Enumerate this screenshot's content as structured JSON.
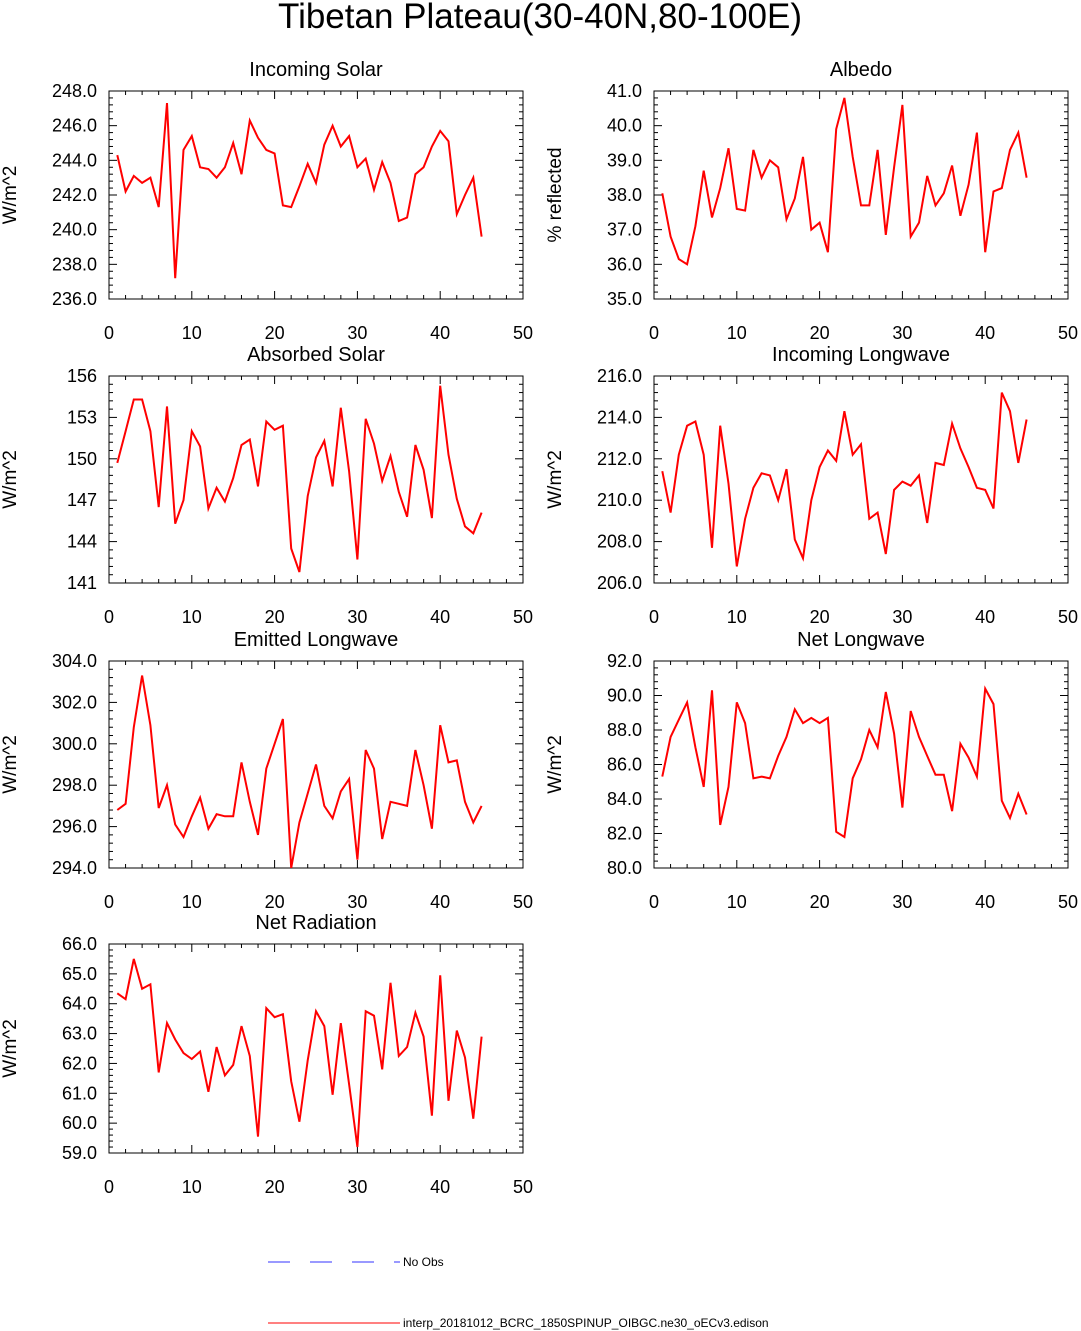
{
  "figure": {
    "title": "Tibetan Plateau(30-40N,80-100E)",
    "legend": {
      "obs_label": "No Obs",
      "obs_color": "#3333ff",
      "model_label": "interp_20181012_BCRC_1850SPINUP_OIBGC.ne30_oECv3.edison",
      "model_color": "#ff0000"
    }
  },
  "chart_data": [
    {
      "type": "line",
      "title": "Incoming Solar",
      "ylabel": "W/m^2",
      "xlim": [
        0,
        50
      ],
      "ylim": [
        236,
        248
      ],
      "ytick_step": 2,
      "ytick_decimals": 1,
      "xticks": [
        "0",
        "10",
        "20",
        "30",
        "40",
        "50"
      ],
      "yticks": [
        "236.0",
        "238.0",
        "240.0",
        "242.0",
        "244.0",
        "246.0",
        "248.0"
      ],
      "x": [
        1,
        2,
        3,
        4,
        5,
        6,
        7,
        8,
        9,
        10,
        11,
        12,
        13,
        14,
        15,
        16,
        17,
        18,
        19,
        20,
        21,
        22,
        23,
        24,
        25,
        26,
        27,
        28,
        29,
        30,
        31,
        32,
        33,
        34,
        35,
        36,
        37,
        38,
        39,
        40,
        41,
        42,
        43,
        44,
        45
      ],
      "series": [
        {
          "color": "#ff0000",
          "values": [
            244.3,
            242.2,
            243.1,
            242.7,
            243.0,
            241.3,
            247.3,
            237.2,
            244.6,
            245.4,
            243.6,
            243.5,
            243.0,
            243.6,
            245.0,
            243.2,
            246.3,
            245.3,
            244.6,
            244.4,
            241.4,
            241.3,
            242.5,
            243.8,
            242.7,
            244.9,
            246.0,
            244.8,
            245.4,
            243.6,
            244.1,
            242.3,
            243.9,
            242.7,
            240.5,
            240.7,
            243.2,
            243.6,
            244.8,
            245.7,
            245.1,
            240.9,
            242.0,
            243.0,
            239.6
          ]
        }
      ]
    },
    {
      "type": "line",
      "title": "Albedo",
      "ylabel": "% reflected",
      "xlim": [
        0,
        50
      ],
      "ylim": [
        35,
        41
      ],
      "ytick_step": 1,
      "ytick_decimals": 1,
      "xticks": [
        "0",
        "10",
        "20",
        "30",
        "40",
        "50"
      ],
      "yticks": [
        "35.0",
        "36.0",
        "37.0",
        "38.0",
        "39.0",
        "40.0",
        "41.0"
      ],
      "x": [
        1,
        2,
        3,
        4,
        5,
        6,
        7,
        8,
        9,
        10,
        11,
        12,
        13,
        14,
        15,
        16,
        17,
        18,
        19,
        20,
        21,
        22,
        23,
        24,
        25,
        26,
        27,
        28,
        29,
        30,
        31,
        32,
        33,
        34,
        35,
        36,
        37,
        38,
        39,
        40,
        41,
        42,
        43,
        44,
        45
      ],
      "series": [
        {
          "color": "#ff0000",
          "values": [
            38.05,
            36.8,
            36.15,
            36.0,
            37.1,
            38.7,
            37.35,
            38.2,
            39.35,
            37.6,
            37.55,
            39.3,
            38.5,
            39.0,
            38.8,
            37.3,
            37.9,
            39.1,
            37.0,
            37.2,
            36.35,
            39.9,
            40.8,
            39.1,
            37.7,
            37.7,
            39.3,
            36.85,
            38.8,
            40.6,
            36.8,
            37.2,
            38.55,
            37.7,
            38.05,
            38.85,
            37.4,
            38.3,
            39.8,
            36.35,
            38.1,
            38.2,
            39.3,
            39.8,
            38.5
          ]
        }
      ]
    },
    {
      "type": "line",
      "title": "Absorbed Solar",
      "ylabel": "W/m^2",
      "xlim": [
        0,
        50
      ],
      "ylim": [
        141,
        156
      ],
      "ytick_step": 3,
      "ytick_decimals": 0,
      "xticks": [
        "0",
        "10",
        "20",
        "30",
        "40",
        "50"
      ],
      "yticks": [
        "141",
        "144",
        "147",
        "150",
        "153",
        "156"
      ],
      "x": [
        1,
        2,
        3,
        4,
        5,
        6,
        7,
        8,
        9,
        10,
        11,
        12,
        13,
        14,
        15,
        16,
        17,
        18,
        19,
        20,
        21,
        22,
        23,
        24,
        25,
        26,
        27,
        28,
        29,
        30,
        31,
        32,
        33,
        34,
        35,
        36,
        37,
        38,
        39,
        40,
        41,
        42,
        43,
        44,
        45
      ],
      "series": [
        {
          "color": "#ff0000",
          "values": [
            149.7,
            152.0,
            154.3,
            154.3,
            152.0,
            146.5,
            153.8,
            145.3,
            147.0,
            152.0,
            150.9,
            146.4,
            147.9,
            146.9,
            148.6,
            151.0,
            151.4,
            148.0,
            152.7,
            152.1,
            152.4,
            143.5,
            141.8,
            147.3,
            150.1,
            151.3,
            148.0,
            153.7,
            149.1,
            142.7,
            152.9,
            151.1,
            148.4,
            150.2,
            147.6,
            145.8,
            151.0,
            149.2,
            145.7,
            155.3,
            150.3,
            147.1,
            145.1,
            144.6,
            146.1
          ]
        }
      ]
    },
    {
      "type": "line",
      "title": "Incoming Longwave",
      "ylabel": "W/m^2",
      "xlim": [
        0,
        50
      ],
      "ylim": [
        206,
        216
      ],
      "ytick_step": 2,
      "ytick_decimals": 1,
      "xticks": [
        "0",
        "10",
        "20",
        "30",
        "40",
        "50"
      ],
      "yticks": [
        "206.0",
        "208.0",
        "210.0",
        "212.0",
        "214.0",
        "216.0"
      ],
      "x": [
        1,
        2,
        3,
        4,
        5,
        6,
        7,
        8,
        9,
        10,
        11,
        12,
        13,
        14,
        15,
        16,
        17,
        18,
        19,
        20,
        21,
        22,
        23,
        24,
        25,
        26,
        27,
        28,
        29,
        30,
        31,
        32,
        33,
        34,
        35,
        36,
        37,
        38,
        39,
        40,
        41,
        42,
        43,
        44,
        45
      ],
      "series": [
        {
          "color": "#ff0000",
          "values": [
            211.4,
            209.4,
            212.2,
            213.6,
            213.8,
            212.2,
            207.7,
            213.6,
            210.8,
            206.8,
            209.1,
            210.6,
            211.3,
            211.2,
            210.0,
            211.5,
            208.1,
            207.2,
            210.0,
            211.6,
            212.4,
            211.9,
            214.3,
            212.2,
            212.7,
            209.1,
            209.4,
            207.4,
            210.5,
            210.9,
            210.7,
            211.2,
            208.9,
            211.8,
            211.7,
            213.7,
            212.5,
            211.6,
            210.6,
            210.5,
            209.6,
            215.2,
            214.3,
            211.8,
            213.9
          ]
        }
      ]
    },
    {
      "type": "line",
      "title": "Emitted Longwave",
      "ylabel": "W/m^2",
      "xlim": [
        0,
        50
      ],
      "ylim": [
        294,
        304
      ],
      "ytick_step": 2,
      "ytick_decimals": 1,
      "xticks": [
        "0",
        "10",
        "20",
        "30",
        "40",
        "50"
      ],
      "yticks": [
        "294.0",
        "296.0",
        "298.0",
        "300.0",
        "302.0",
        "304.0"
      ],
      "x": [
        1,
        2,
        3,
        4,
        5,
        6,
        7,
        8,
        9,
        10,
        11,
        12,
        13,
        14,
        15,
        16,
        17,
        18,
        19,
        20,
        21,
        22,
        23,
        24,
        25,
        26,
        27,
        28,
        29,
        30,
        31,
        32,
        33,
        34,
        35,
        36,
        37,
        38,
        39,
        40,
        41,
        42,
        43,
        44,
        45
      ],
      "series": [
        {
          "color": "#ff0000",
          "values": [
            296.8,
            297.1,
            300.8,
            303.3,
            300.9,
            296.9,
            298.0,
            296.1,
            295.5,
            296.5,
            297.4,
            295.9,
            296.6,
            296.5,
            296.5,
            299.1,
            297.2,
            295.6,
            298.8,
            300.0,
            301.2,
            294.0,
            296.2,
            297.6,
            299.0,
            297.0,
            296.4,
            297.7,
            298.3,
            294.4,
            299.7,
            298.8,
            295.4,
            297.2,
            297.1,
            297.0,
            299.7,
            298.0,
            295.9,
            300.9,
            299.1,
            299.2,
            297.2,
            296.2,
            297.0
          ]
        }
      ]
    },
    {
      "type": "line",
      "title": "Net Longwave",
      "ylabel": "W/m^2",
      "xlim": [
        0,
        50
      ],
      "ylim": [
        80,
        92
      ],
      "ytick_step": 2,
      "ytick_decimals": 1,
      "xticks": [
        "0",
        "10",
        "20",
        "30",
        "40",
        "50"
      ],
      "yticks": [
        "80.0",
        "82.0",
        "84.0",
        "86.0",
        "88.0",
        "90.0",
        "92.0"
      ],
      "x": [
        1,
        2,
        3,
        4,
        5,
        6,
        7,
        8,
        9,
        10,
        11,
        12,
        13,
        14,
        15,
        16,
        17,
        18,
        19,
        20,
        21,
        22,
        23,
        24,
        25,
        26,
        27,
        28,
        29,
        30,
        31,
        32,
        33,
        34,
        35,
        36,
        37,
        38,
        39,
        40,
        41,
        42,
        43,
        44,
        45
      ],
      "series": [
        {
          "color": "#ff0000",
          "values": [
            85.3,
            87.6,
            88.6,
            89.6,
            87.0,
            84.7,
            90.3,
            82.5,
            84.7,
            89.6,
            88.4,
            85.2,
            85.3,
            85.2,
            86.5,
            87.6,
            89.2,
            88.4,
            88.7,
            88.4,
            88.7,
            82.1,
            81.8,
            85.2,
            86.3,
            88.0,
            87.0,
            90.2,
            87.8,
            83.5,
            89.1,
            87.6,
            86.5,
            85.4,
            85.4,
            83.3,
            87.2,
            86.4,
            85.3,
            90.4,
            89.5,
            83.9,
            82.9,
            84.3,
            83.1
          ]
        }
      ]
    },
    {
      "type": "line",
      "title": "Net Radiation",
      "ylabel": "W/m^2",
      "xlim": [
        0,
        50
      ],
      "ylim": [
        59,
        66
      ],
      "ytick_step": 1,
      "ytick_decimals": 1,
      "xticks": [
        "0",
        "10",
        "20",
        "30",
        "40",
        "50"
      ],
      "yticks": [
        "59.0",
        "60.0",
        "61.0",
        "62.0",
        "63.0",
        "64.0",
        "65.0",
        "66.0"
      ],
      "x": [
        1,
        2,
        3,
        4,
        5,
        6,
        7,
        8,
        9,
        10,
        11,
        12,
        13,
        14,
        15,
        16,
        17,
        18,
        19,
        20,
        21,
        22,
        23,
        24,
        25,
        26,
        27,
        28,
        29,
        30,
        31,
        32,
        33,
        34,
        35,
        36,
        37,
        38,
        39,
        40,
        41,
        42,
        43,
        44,
        45
      ],
      "series": [
        {
          "color": "#ff0000",
          "values": [
            64.35,
            64.15,
            65.5,
            64.5,
            64.65,
            61.7,
            63.35,
            62.8,
            62.35,
            62.15,
            62.4,
            61.05,
            62.55,
            61.6,
            61.95,
            63.25,
            62.25,
            59.55,
            63.85,
            63.55,
            63.65,
            61.4,
            60.05,
            62.1,
            63.75,
            63.25,
            60.95,
            63.35,
            61.3,
            59.2,
            63.75,
            63.6,
            61.8,
            64.7,
            62.25,
            62.55,
            63.7,
            62.9,
            60.25,
            64.95,
            60.75,
            63.1,
            62.2,
            60.15,
            62.9
          ]
        }
      ]
    }
  ]
}
